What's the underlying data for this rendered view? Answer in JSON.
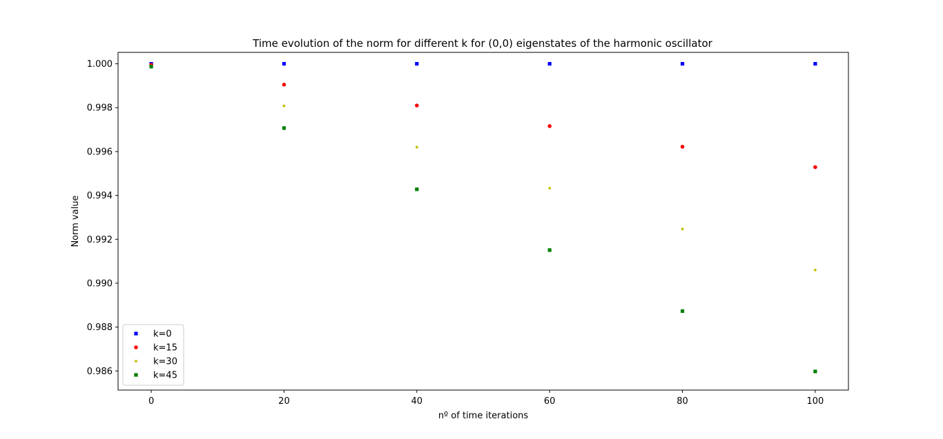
{
  "chart_data": {
    "type": "scatter",
    "title": "Time evolution of the norm for different k for (0,0) eigenstates of the harmonic oscillator",
    "xlabel": "nº of time iterations",
    "ylabel": "Norm value",
    "xlim": [
      -5,
      105
    ],
    "ylim": [
      0.98513,
      1.00052
    ],
    "xticks": [
      0,
      20,
      40,
      60,
      80,
      100
    ],
    "xtick_labels": [
      "0",
      "20",
      "40",
      "60",
      "80",
      "100"
    ],
    "yticks": [
      0.986,
      0.988,
      0.99,
      0.992,
      0.994,
      0.996,
      0.998,
      1.0
    ],
    "ytick_labels": [
      "0.986",
      "0.988",
      "0.990",
      "0.992",
      "0.994",
      "0.996",
      "0.998",
      "1.000"
    ],
    "grid": false,
    "legend_position": "lower-left",
    "x": [
      0,
      20,
      40,
      60,
      80,
      100
    ],
    "series": [
      {
        "name": "k=0",
        "color": "#0000ff",
        "marker": "square",
        "values": [
          1.0,
          1.0,
          1.0,
          1.0,
          1.0,
          1.0
        ]
      },
      {
        "name": "k=15",
        "color": "#ff0000",
        "marker": "circle",
        "values": [
          0.99995,
          0.99905,
          0.9981,
          0.99716,
          0.99622,
          0.99529
        ]
      },
      {
        "name": "k=30",
        "color": "#bfbf00",
        "marker": "diamond",
        "values": [
          0.9999,
          0.99808,
          0.9962,
          0.99433,
          0.99247,
          0.9906
        ]
      },
      {
        "name": "k=45",
        "color": "#008000",
        "marker": "square",
        "values": [
          0.99987,
          0.99707,
          0.99428,
          0.99151,
          0.98873,
          0.98598
        ]
      }
    ]
  }
}
